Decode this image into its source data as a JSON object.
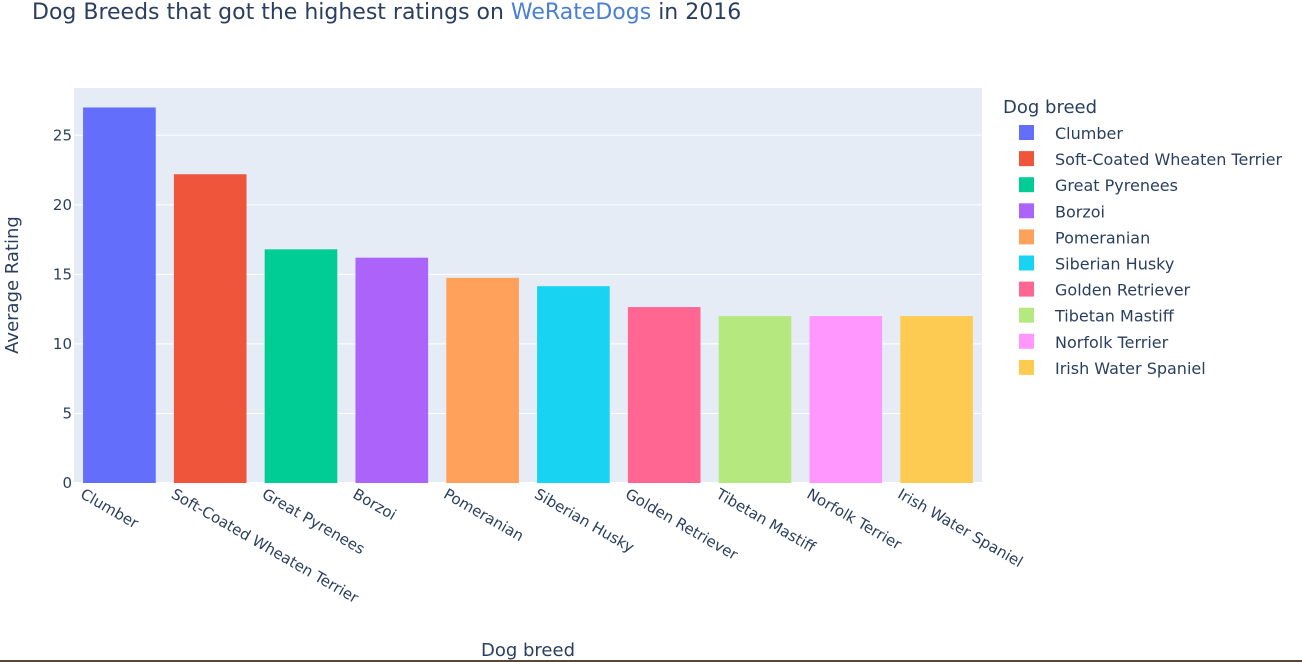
{
  "chart_data": {
    "type": "bar",
    "title": {
      "prefix": "Dog Breeds that got the highest ratings on ",
      "highlight": "WeRateDogs",
      "suffix": " in 2016"
    },
    "xlabel": "Dog breed",
    "ylabel": "Average Rating",
    "legend_title": "Dog breed",
    "legend_position": "right",
    "grid": true,
    "ylim": [
      0,
      28.4
    ],
    "yticks": [
      0,
      5,
      10,
      15,
      20,
      25
    ],
    "categories": [
      "Clumber",
      "Soft-Coated Wheaten Terrier",
      "Great Pyrenees",
      "Borzoi",
      "Pomeranian",
      "Siberian Husky",
      "Golden Retriever",
      "Tibetan Mastiff",
      "Norfolk Terrier",
      "Irish Water Spaniel"
    ],
    "values": [
      27.0,
      22.2,
      16.8,
      16.2,
      14.75,
      14.15,
      12.65,
      12.0,
      12.0,
      12.0
    ],
    "colors": [
      "#636efa",
      "#ef553b",
      "#00cc96",
      "#ab63fa",
      "#ffa15a",
      "#19d3f3",
      "#ff6692",
      "#b6e880",
      "#ff97ff",
      "#fecb52"
    ]
  }
}
